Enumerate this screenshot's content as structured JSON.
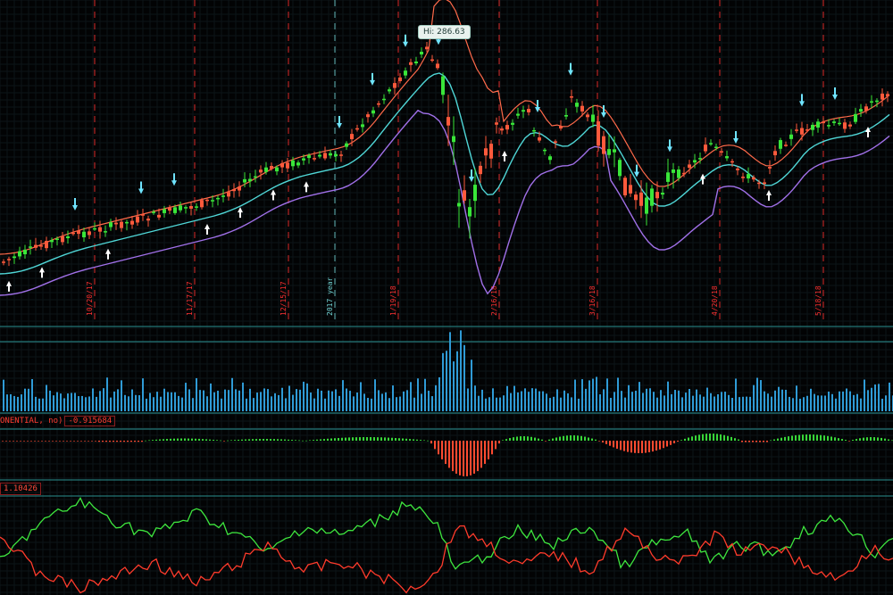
{
  "chart_data": {
    "type": "candlestick",
    "price_panel": {
      "callout": "Hi: 286.63",
      "date_labels": [
        "10/20/17",
        "11/17/17",
        "12/15/17",
        "2017 year",
        "1/19/18",
        "2/16/18",
        "3/16/18",
        "4/20/18",
        "5/18/18"
      ],
      "bands": [
        "upper",
        "middle",
        "lower"
      ],
      "colors": {
        "up": "#39e639",
        "down": "#ff5a3c",
        "upper_band": "#ff6a4a",
        "middle_band": "#4fd6d6",
        "lower_band": "#a070e8",
        "vline": "#ff3030",
        "year_line": "#70d0d0",
        "arrow_up": "#ffffff",
        "arrow_down": "#6fe4ff"
      }
    },
    "volume_panel": {
      "color": "#2f9bd6"
    },
    "macd_panel": {
      "label": "ONENTIAL, no)",
      "value": "-0.915684",
      "colors": {
        "positive": "#39d639",
        "negative": "#ff4a30"
      }
    },
    "oscillator_panel": {
      "value": "1.10426",
      "colors": {
        "line_a": "#3ee63e",
        "line_b": "#ff3b2b"
      }
    }
  }
}
